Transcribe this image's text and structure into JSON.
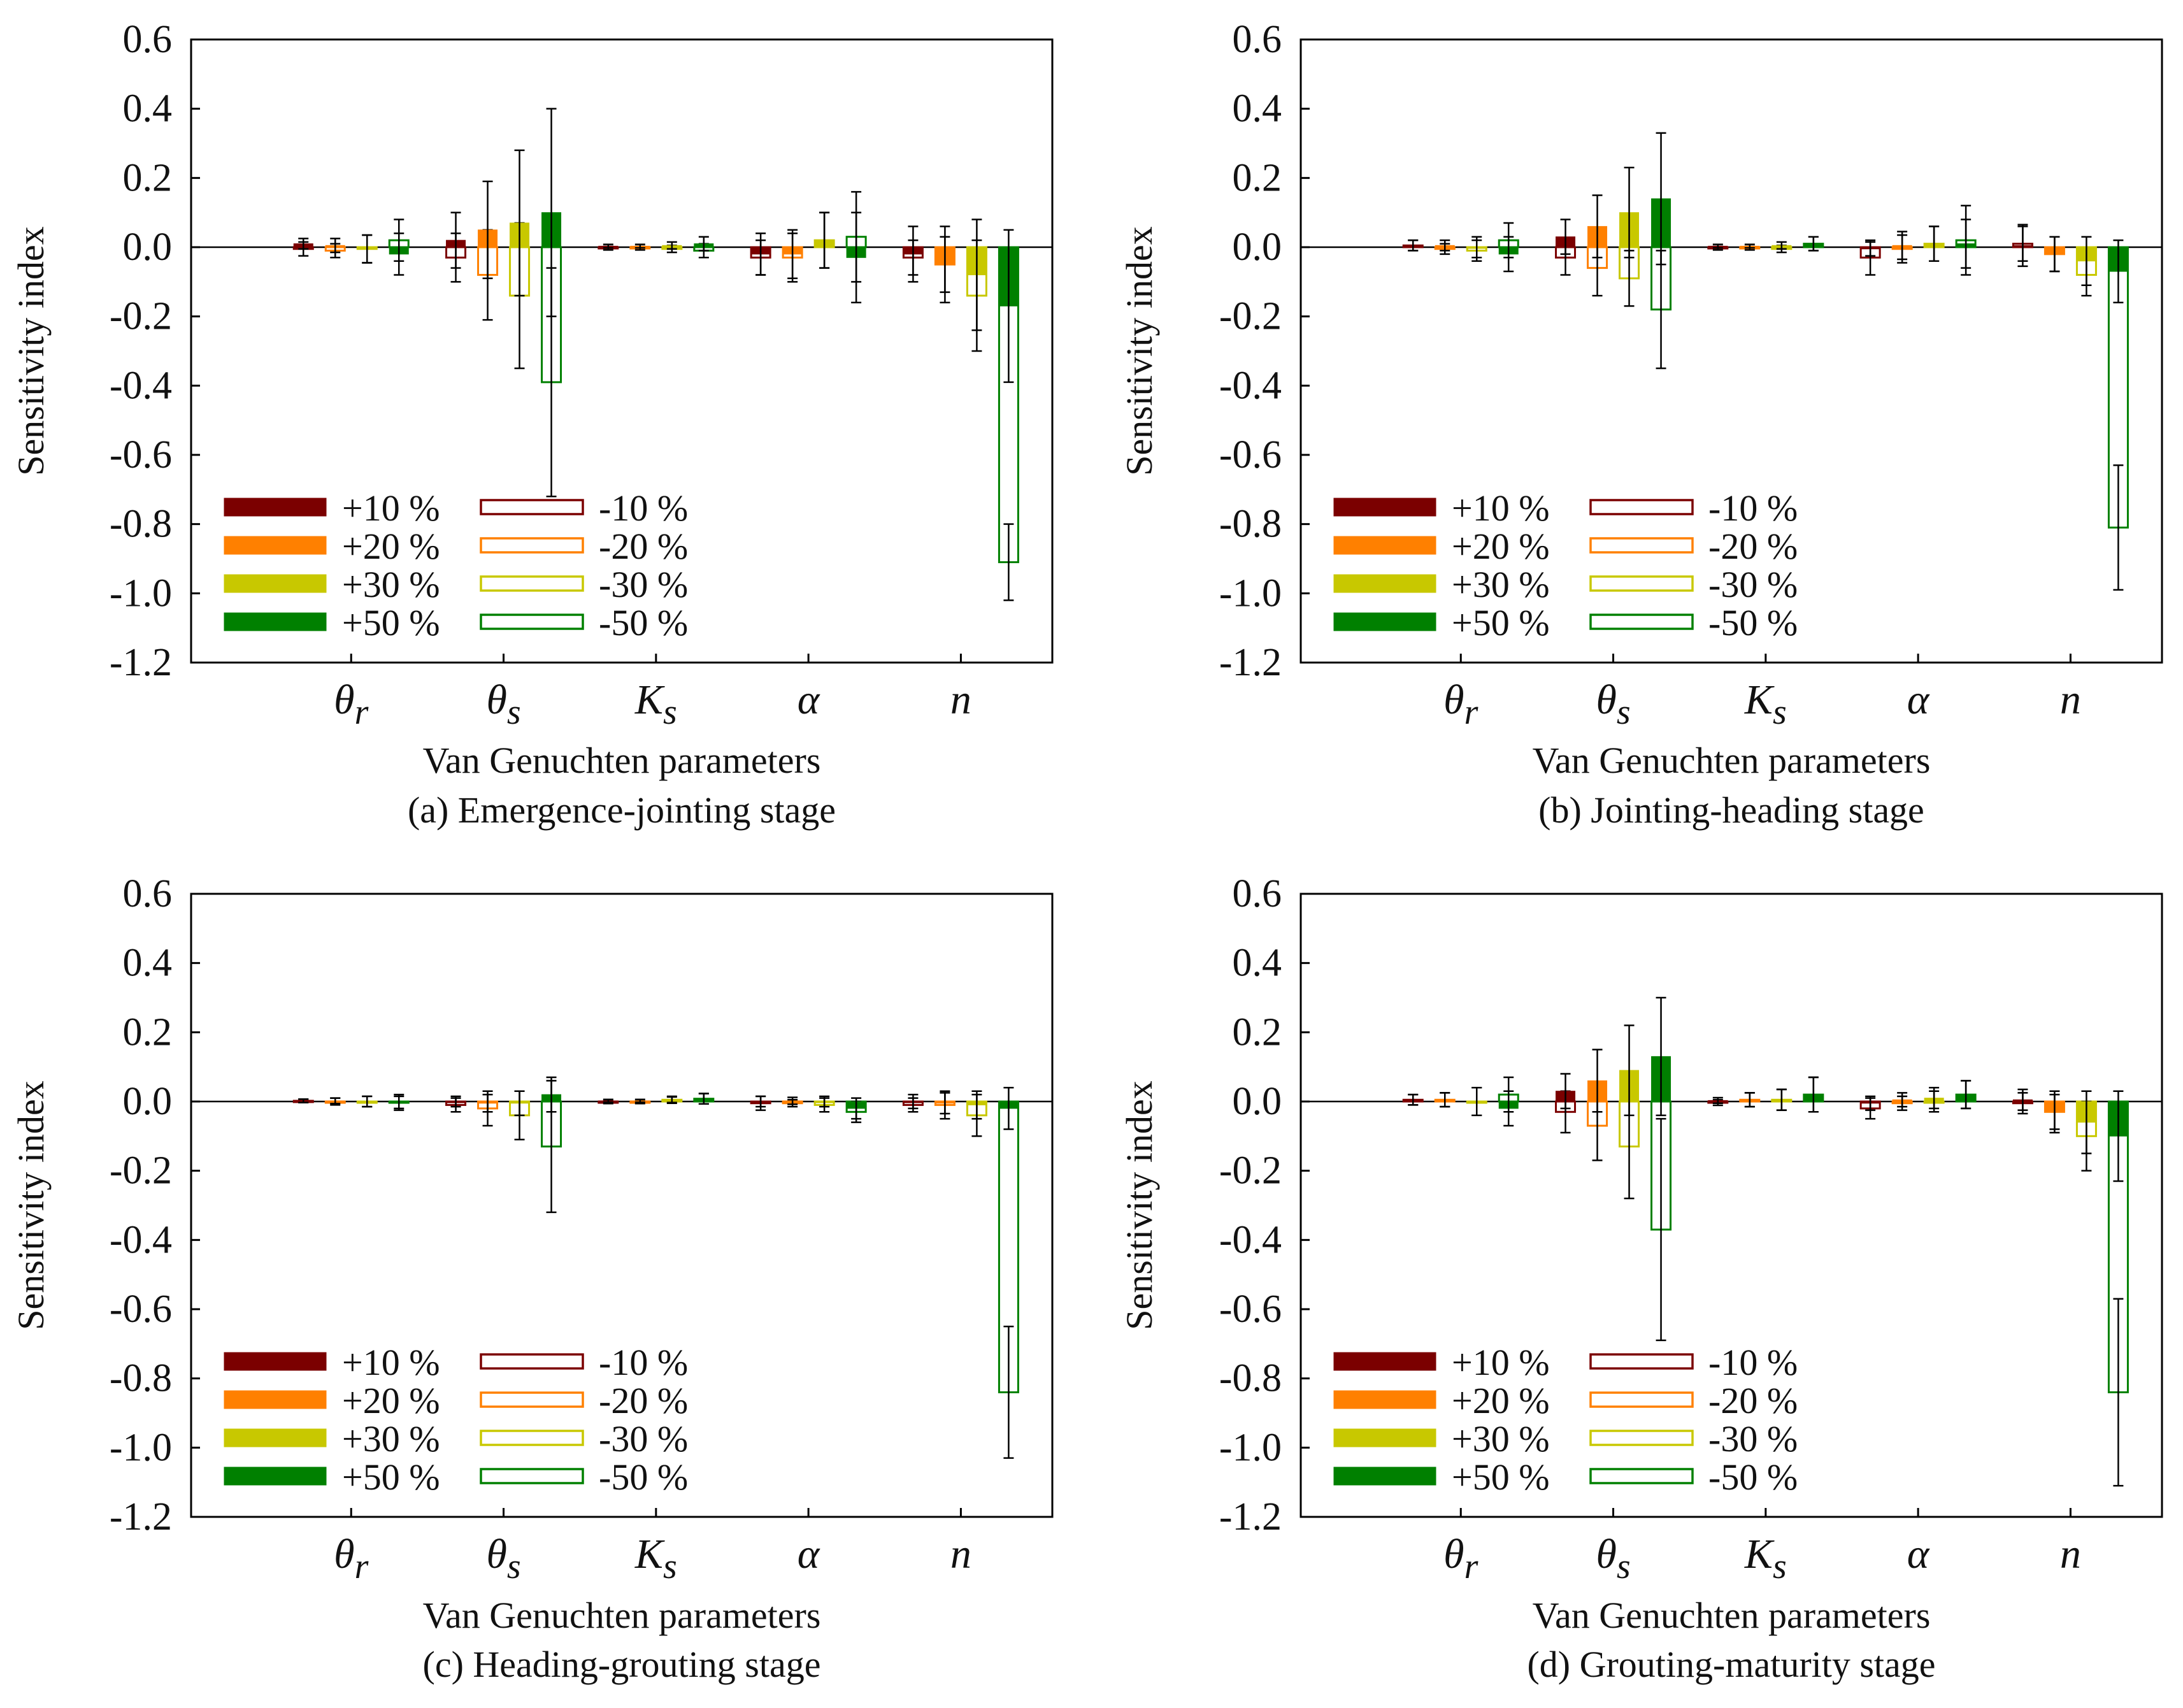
{
  "figure": {
    "legend": {
      "entries": [
        {
          "label": "+10 %",
          "color": "#7b0000",
          "fill": "solid"
        },
        {
          "label": "+20 %",
          "color": "#ff8000",
          "fill": "solid"
        },
        {
          "label": "+30 %",
          "color": "#c8c800",
          "fill": "solid"
        },
        {
          "label": "+50 %",
          "color": "#008000",
          "fill": "solid"
        },
        {
          "label": "-10 %",
          "color": "#7b0000",
          "fill": "hollow"
        },
        {
          "label": "-20 %",
          "color": "#ff8000",
          "fill": "hollow"
        },
        {
          "label": "-30 %",
          "color": "#c8c800",
          "fill": "hollow"
        },
        {
          "label": "-50 %",
          "color": "#008000",
          "fill": "hollow"
        }
      ],
      "placement": "lower-left"
    }
  },
  "chart_data": [
    {
      "type": "bar",
      "title": "(a) Emergence-jointing stage",
      "xlabel": "Van Genuchten parameters",
      "ylabel": "Sensitivity index",
      "ylim": [
        -1.2,
        0.6
      ],
      "yticks": [
        "0.6",
        "0.4",
        "0.2",
        "0.0",
        "-0.2",
        "-0.4",
        "-0.6",
        "-0.8",
        "-1.0",
        "-1.2"
      ],
      "categories": [
        {
          "base": "θ",
          "sub": "r"
        },
        {
          "base": "θ",
          "sub": "s"
        },
        {
          "base": "K",
          "sub": "s"
        },
        {
          "base": "α",
          "sub": ""
        },
        {
          "base": "n",
          "sub": ""
        }
      ],
      "positive_series": [
        {
          "name": "+10 %",
          "values": [
            0.01,
            0.02,
            0.003,
            -0.02,
            -0.02
          ],
          "errors": [
            0.015,
            0.08,
            0.005,
            0.06,
            0.08
          ]
        },
        {
          "name": "+20 %",
          "values": [
            0.005,
            0.05,
            0.003,
            -0.02,
            -0.05
          ],
          "errors": [
            0.02,
            0.14,
            0.005,
            0.07,
            0.11
          ]
        },
        {
          "name": "+30 %",
          "values": [
            -0.005,
            0.07,
            0.005,
            0.02,
            -0.08
          ],
          "errors": [
            0.04,
            0.21,
            0.01,
            0.08,
            0.16
          ]
        },
        {
          "name": "+50 %",
          "values": [
            -0.02,
            0.1,
            0.01,
            -0.03,
            -0.17
          ],
          "errors": [
            0.06,
            0.3,
            0.02,
            0.13,
            0.22
          ]
        }
      ],
      "negative_series": [
        {
          "name": "-10 %",
          "values": [
            -0.005,
            -0.03,
            -0.003,
            -0.03,
            -0.03
          ],
          "errors": [
            0.02,
            0.07,
            0.005,
            0.05,
            0.05
          ]
        },
        {
          "name": "-20 %",
          "values": [
            -0.01,
            -0.08,
            -0.003,
            -0.03,
            -0.05
          ],
          "errors": [
            0.02,
            0.13,
            0.005,
            0.07,
            0.08
          ]
        },
        {
          "name": "-30 %",
          "values": [
            -0.005,
            -0.14,
            -0.005,
            0.02,
            -0.14
          ],
          "errors": [
            0.04,
            0.21,
            0.01,
            0.08,
            0.16
          ]
        },
        {
          "name": "-50 %",
          "values": [
            0.02,
            -0.39,
            -0.01,
            0.03,
            -0.91
          ],
          "errors": [
            0.06,
            0.33,
            0.02,
            0.13,
            0.11
          ]
        }
      ]
    },
    {
      "type": "bar",
      "title": "(b) Jointing-heading stage",
      "xlabel": "Van Genuchten parameters",
      "ylabel": "Sensitivity index",
      "ylim": [
        -1.2,
        0.6
      ],
      "yticks": [
        "0.6",
        "0.4",
        "0.2",
        "0.0",
        "-0.2",
        "-0.4",
        "-0.6",
        "-0.8",
        "-1.0",
        "-1.2"
      ],
      "categories": [
        {
          "base": "θ",
          "sub": "r"
        },
        {
          "base": "θ",
          "sub": "s"
        },
        {
          "base": "K",
          "sub": "s"
        },
        {
          "base": "α",
          "sub": ""
        },
        {
          "base": "n",
          "sub": ""
        }
      ],
      "positive_series": [
        {
          "name": "+10 %",
          "values": [
            0.005,
            0.03,
            0.003,
            -0.005,
            0.005
          ],
          "errors": [
            0.015,
            0.05,
            0.005,
            0.02,
            0.06
          ]
        },
        {
          "name": "+20 %",
          "values": [
            0.005,
            0.06,
            0.003,
            0.005,
            -0.02
          ],
          "errors": [
            0.015,
            0.09,
            0.005,
            0.04,
            0.05
          ]
        },
        {
          "name": "+30 %",
          "values": [
            0.0,
            0.1,
            0.005,
            0.01,
            -0.04
          ],
          "errors": [
            0.03,
            0.13,
            0.01,
            0.05,
            0.07
          ]
        },
        {
          "name": "+50 %",
          "values": [
            -0.02,
            0.14,
            0.01,
            0.01,
            -0.07
          ],
          "errors": [
            0.05,
            0.19,
            0.02,
            0.07,
            0.09
          ]
        }
      ],
      "negative_series": [
        {
          "name": "-10 %",
          "values": [
            0.005,
            -0.03,
            -0.003,
            -0.03,
            0.01
          ],
          "errors": [
            0.015,
            0.05,
            0.005,
            0.05,
            0.05
          ]
        },
        {
          "name": "-20 %",
          "values": [
            -0.005,
            -0.06,
            -0.003,
            -0.005,
            -0.02
          ],
          "errors": [
            0.015,
            0.08,
            0.005,
            0.04,
            0.05
          ]
        },
        {
          "name": "-30 %",
          "values": [
            -0.01,
            -0.09,
            -0.005,
            0.01,
            -0.08
          ],
          "errors": [
            0.03,
            0.08,
            0.01,
            0.05,
            0.06
          ]
        },
        {
          "name": "-50 %",
          "values": [
            0.02,
            -0.18,
            0.01,
            0.02,
            -0.81
          ],
          "errors": [
            0.05,
            0.17,
            0.02,
            0.1,
            0.18
          ]
        }
      ]
    },
    {
      "type": "bar",
      "title": "(c) Heading-grouting stage",
      "xlabel": "Van Genuchten parameters",
      "ylabel": "Sensitivity index",
      "ylim": [
        -1.2,
        0.6
      ],
      "yticks": [
        "0.6",
        "0.4",
        "0.2",
        "0.0",
        "-0.2",
        "-0.4",
        "-0.6",
        "-0.8",
        "-1.0",
        "-1.2"
      ],
      "categories": [
        {
          "base": "θ",
          "sub": "r"
        },
        {
          "base": "θ",
          "sub": "s"
        },
        {
          "base": "K",
          "sub": "s"
        },
        {
          "base": "α",
          "sub": ""
        },
        {
          "base": "n",
          "sub": ""
        }
      ],
      "positive_series": [
        {
          "name": "+10 %",
          "values": [
            0.002,
            0.0,
            0.002,
            0.0,
            0.0
          ],
          "errors": [
            0.005,
            0.015,
            0.004,
            0.015,
            0.02
          ]
        },
        {
          "name": "+20 %",
          "values": [
            0.002,
            -0.005,
            0.002,
            0.002,
            -0.005
          ],
          "errors": [
            0.008,
            0.025,
            0.004,
            0.01,
            0.03
          ]
        },
        {
          "name": "+30 %",
          "values": [
            0.0,
            -0.005,
            0.005,
            0.0,
            -0.01
          ],
          "errors": [
            0.015,
            0.035,
            0.008,
            0.015,
            0.04
          ]
        },
        {
          "name": "+50 %",
          "values": [
            -0.005,
            0.02,
            0.008,
            -0.02,
            -0.02
          ],
          "errors": [
            0.02,
            0.05,
            0.015,
            0.03,
            0.06
          ]
        }
      ],
      "negative_series": [
        {
          "name": "-10 %",
          "values": [
            0.002,
            -0.01,
            -0.002,
            -0.005,
            -0.01
          ],
          "errors": [
            0.005,
            0.02,
            0.004,
            0.02,
            0.02
          ]
        },
        {
          "name": "-20 %",
          "values": [
            0.0,
            -0.02,
            -0.002,
            -0.005,
            -0.01
          ],
          "errors": [
            0.01,
            0.05,
            0.004,
            0.01,
            0.04
          ]
        },
        {
          "name": "-30 %",
          "values": [
            0.0,
            -0.04,
            0.005,
            -0.01,
            -0.04
          ],
          "errors": [
            0.015,
            0.07,
            0.01,
            0.02,
            0.06
          ]
        },
        {
          "name": "-50 %",
          "values": [
            0.0,
            -0.13,
            0.008,
            -0.03,
            -0.84
          ],
          "errors": [
            0.02,
            0.19,
            0.015,
            0.03,
            0.19
          ]
        }
      ]
    },
    {
      "type": "bar",
      "title": "(d) Grouting-maturity stage",
      "xlabel": "Van Genuchten parameters",
      "ylabel": "Sensitivity index",
      "ylim": [
        -1.2,
        0.6
      ],
      "yticks": [
        "0.6",
        "0.4",
        "0.2",
        "0.0",
        "-0.2",
        "-0.4",
        "-0.6",
        "-0.8",
        "-1.0",
        "-1.2"
      ],
      "categories": [
        {
          "base": "θ",
          "sub": "r"
        },
        {
          "base": "θ",
          "sub": "s"
        },
        {
          "base": "K",
          "sub": "s"
        },
        {
          "base": "α",
          "sub": ""
        },
        {
          "base": "n",
          "sub": ""
        }
      ],
      "positive_series": [
        {
          "name": "+10 %",
          "values": [
            0.005,
            0.03,
            0.003,
            -0.005,
            0.005
          ],
          "errors": [
            0.015,
            0.05,
            0.008,
            0.02,
            0.03
          ]
        },
        {
          "name": "+20 %",
          "values": [
            0.005,
            0.06,
            0.005,
            0.005,
            -0.03
          ],
          "errors": [
            0.02,
            0.09,
            0.02,
            0.02,
            0.05
          ]
        },
        {
          "name": "+30 %",
          "values": [
            0.0,
            0.09,
            0.005,
            0.01,
            -0.06
          ],
          "errors": [
            0.04,
            0.13,
            0.03,
            0.03,
            0.09
          ]
        },
        {
          "name": "+50 %",
          "values": [
            -0.02,
            0.13,
            0.02,
            0.02,
            -0.1
          ],
          "errors": [
            0.05,
            0.17,
            0.05,
            0.04,
            0.13
          ]
        }
      ],
      "negative_series": [
        {
          "name": "-10 %",
          "values": [
            0.005,
            -0.03,
            -0.003,
            -0.02,
            -0.005
          ],
          "errors": [
            0.015,
            0.06,
            0.008,
            0.03,
            0.03
          ]
        },
        {
          "name": "-20 %",
          "values": [
            0.005,
            -0.07,
            0.005,
            -0.005,
            -0.03
          ],
          "errors": [
            0.02,
            0.1,
            0.02,
            0.02,
            0.06
          ]
        },
        {
          "name": "-30 %",
          "values": [
            0.0,
            -0.13,
            0.005,
            0.0,
            -0.1
          ],
          "errors": [
            0.04,
            0.15,
            0.03,
            0.03,
            0.1
          ]
        },
        {
          "name": "-50 %",
          "values": [
            0.02,
            -0.37,
            0.02,
            0.02,
            -0.84
          ],
          "errors": [
            0.05,
            0.32,
            0.05,
            0.04,
            0.27
          ]
        }
      ]
    }
  ]
}
